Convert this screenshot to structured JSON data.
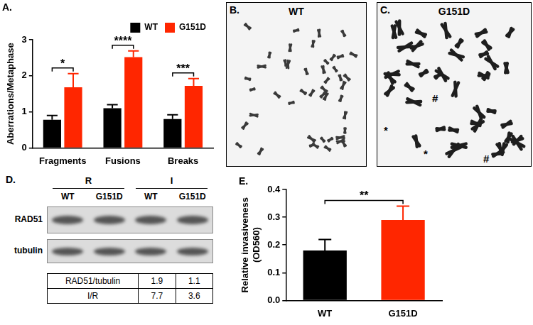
{
  "chart_data": [
    {
      "panel": "A.",
      "type": "bar",
      "categories": [
        "Fragments",
        "Fusions",
        "Breaks"
      ],
      "y_label": "Aberrations/Metaphase",
      "series": [
        {
          "name": "WT",
          "color": "#000000",
          "values": [
            0.78,
            1.1,
            0.8
          ],
          "errors": [
            0.12,
            0.1,
            0.12
          ]
        },
        {
          "name": "G151D",
          "color": "#ff2600",
          "values": [
            1.68,
            2.52,
            1.72
          ],
          "errors": [
            0.38,
            0.17,
            0.2
          ]
        }
      ],
      "ylim": [
        0,
        3
      ],
      "yticks": [
        0,
        1,
        2,
        3
      ],
      "grid": false,
      "legend": "top right",
      "significance": [
        {
          "category": "Fragments",
          "label": "*"
        },
        {
          "category": "Fusions",
          "label": "****"
        },
        {
          "category": "Breaks",
          "label": "***"
        }
      ]
    },
    {
      "panel": "E.",
      "type": "bar",
      "categories": [
        "WT",
        "G151D"
      ],
      "values": [
        0.18,
        0.29
      ],
      "errors": [
        0.04,
        0.05
      ],
      "colors": [
        "#000000",
        "#ff2600"
      ],
      "y_label": [
        "Relative invasiveness",
        "(OD560)"
      ],
      "ylim": [
        0,
        0.4
      ],
      "yticks": [
        {
          "value": 0,
          "label": "0.0"
        },
        0.1,
        0.2,
        0.3,
        0.4
      ],
      "grid": false,
      "significance": [
        {
          "between": [
            "WT",
            "G151D"
          ],
          "label": "**"
        }
      ]
    }
  ],
  "images": [
    {
      "panel": "B.",
      "title": "WT"
    },
    {
      "panel": "C.",
      "title": "G151D",
      "annotations": [
        "*",
        "#",
        "*",
        "#"
      ]
    }
  ],
  "blot": {
    "panel": "D.",
    "groups": [
      {
        "label": "R",
        "lanes": [
          "WT",
          "G151D"
        ]
      },
      {
        "label": "I",
        "lanes": [
          "WT",
          "G151D"
        ]
      }
    ],
    "rows": [
      "RAD51",
      "tubulin"
    ],
    "table": [
      [
        "RAD51/tubulin",
        1.9,
        1.1
      ],
      [
        "I/R",
        7.7,
        3.6
      ]
    ]
  }
}
